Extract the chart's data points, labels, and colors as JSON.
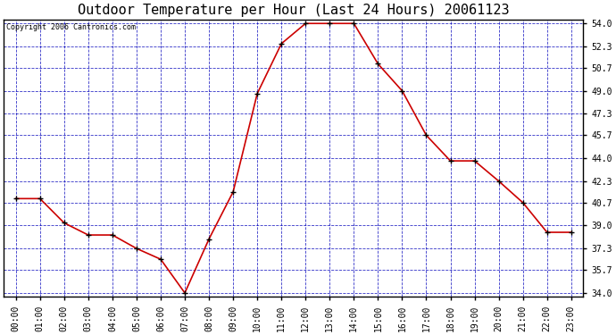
{
  "title": "Outdoor Temperature per Hour (Last 24 Hours) 20061123",
  "copyright_text": "Copyright 2006 Cantronics.com",
  "hours": [
    0,
    1,
    2,
    3,
    4,
    5,
    6,
    7,
    8,
    9,
    10,
    11,
    12,
    13,
    14,
    15,
    16,
    17,
    18,
    19,
    20,
    21,
    22,
    23
  ],
  "x_labels": [
    "00:00",
    "01:00",
    "02:00",
    "03:00",
    "04:00",
    "05:00",
    "06:00",
    "07:00",
    "08:00",
    "09:00",
    "10:00",
    "11:00",
    "12:00",
    "13:00",
    "14:00",
    "15:00",
    "16:00",
    "17:00",
    "18:00",
    "19:00",
    "20:00",
    "21:00",
    "22:00",
    "23:00"
  ],
  "temperatures": [
    41.0,
    41.0,
    39.2,
    38.3,
    38.3,
    37.3,
    36.5,
    34.0,
    38.0,
    41.5,
    48.8,
    52.5,
    54.0,
    54.0,
    54.0,
    51.0,
    49.0,
    45.7,
    43.8,
    43.8,
    42.3,
    40.7,
    38.5,
    38.5
  ],
  "line_color": "#cc0000",
  "marker_color": "#000000",
  "background_color": "#ffffff",
  "plot_bg_color": "#ffffff",
  "grid_color": "#0000bb",
  "yticks": [
    34.0,
    35.7,
    37.3,
    39.0,
    40.7,
    42.3,
    44.0,
    45.7,
    47.3,
    49.0,
    50.7,
    52.3,
    54.0
  ],
  "ymin": 34.0,
  "ymax": 54.0,
  "title_fontsize": 11,
  "tick_fontsize": 7,
  "copyright_fontsize": 6
}
